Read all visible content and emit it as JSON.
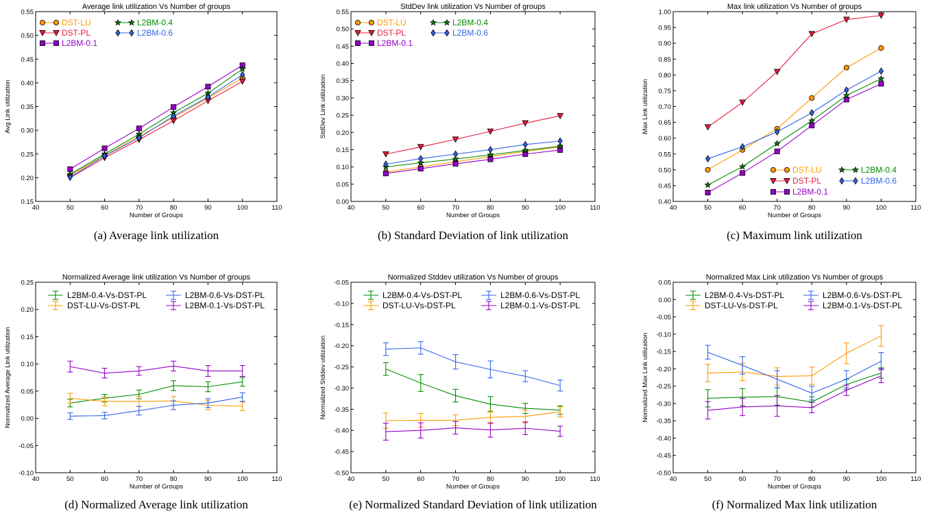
{
  "chart_data": [
    {
      "id": "a",
      "type": "line",
      "title": "Average link utilization Vs Number of groups",
      "xlabel": "Number of Groups",
      "ylabel": "Avg Link utilization",
      "caption": "(a) Average link utilization",
      "xlim": [
        40,
        110
      ],
      "xticks": [
        40,
        50,
        60,
        70,
        80,
        90,
        100,
        110
      ],
      "ylim": [
        0.15,
        0.55
      ],
      "yticks": [
        0.15,
        0.2,
        0.25,
        0.3,
        0.35,
        0.4,
        0.45,
        0.5,
        0.55
      ],
      "ytick_decimals": 2,
      "legend_location": "top-left",
      "legend_columns": [
        0,
        0,
        0,
        1,
        1
      ],
      "x": [
        50,
        60,
        70,
        80,
        90,
        100
      ],
      "series": [
        {
          "name": "DST-LU",
          "color": "#ff9900",
          "marker": "circle",
          "values": [
            0.205,
            0.247,
            0.287,
            0.327,
            0.368,
            0.41
          ]
        },
        {
          "name": "DST-PL",
          "color": "#e8193c",
          "marker": "triangle-down",
          "values": [
            0.2,
            0.242,
            0.28,
            0.32,
            0.362,
            0.403
          ]
        },
        {
          "name": "L2BM-0.1",
          "color": "#9400c8",
          "marker": "square",
          "values": [
            0.218,
            0.262,
            0.304,
            0.349,
            0.392,
            0.437
          ]
        },
        {
          "name": "L2BM-0.4",
          "color": "#008c00",
          "marker": "star",
          "values": [
            0.207,
            0.25,
            0.292,
            0.337,
            0.378,
            0.429
          ]
        },
        {
          "name": "L2BM-0.6",
          "color": "#3264e6",
          "marker": "diamond",
          "values": [
            0.201,
            0.246,
            0.284,
            0.33,
            0.37,
            0.417
          ]
        }
      ]
    },
    {
      "id": "b",
      "type": "line",
      "title": "StdDev link utilization Vs Number of groups",
      "xlabel": "Number of Groups",
      "ylabel": "StdDev Link utilization",
      "caption": "(b) Standard Deviation of link utilization",
      "xlim": [
        40,
        110
      ],
      "xticks": [
        40,
        50,
        60,
        70,
        80,
        90,
        100,
        110
      ],
      "ylim": [
        0.0,
        0.55
      ],
      "yticks": [
        0.0,
        0.05,
        0.1,
        0.15,
        0.2,
        0.25,
        0.3,
        0.35,
        0.4,
        0.45,
        0.5,
        0.55
      ],
      "ytick_decimals": 2,
      "legend_location": "top-left",
      "legend_columns": [
        0,
        0,
        0,
        1,
        1
      ],
      "x": [
        50,
        60,
        70,
        80,
        90,
        100
      ],
      "series": [
        {
          "name": "DST-LU",
          "color": "#ff9900",
          "marker": "circle",
          "values": [
            0.085,
            0.1,
            0.115,
            0.13,
            0.145,
            0.158
          ]
        },
        {
          "name": "DST-PL",
          "color": "#e8193c",
          "marker": "triangle-down",
          "values": [
            0.137,
            0.158,
            0.18,
            0.203,
            0.227,
            0.248
          ]
        },
        {
          "name": "L2BM-0.1",
          "color": "#9400c8",
          "marker": "square",
          "values": [
            0.081,
            0.095,
            0.109,
            0.122,
            0.137,
            0.149
          ]
        },
        {
          "name": "L2BM-0.4",
          "color": "#008c00",
          "marker": "star",
          "values": [
            0.1,
            0.112,
            0.123,
            0.135,
            0.148,
            0.16
          ]
        },
        {
          "name": "L2BM-0.6",
          "color": "#3264e6",
          "marker": "diamond",
          "values": [
            0.108,
            0.124,
            0.137,
            0.15,
            0.165,
            0.175
          ]
        }
      ]
    },
    {
      "id": "c",
      "type": "line",
      "title": "Max link utilization Vs Number of groups",
      "xlabel": "Number of Groups",
      "ylabel": "Max Link utilization",
      "caption": "(c) Maximum link utilization",
      "xlim": [
        40,
        110
      ],
      "xticks": [
        40,
        50,
        60,
        70,
        80,
        90,
        100,
        110
      ],
      "ylim": [
        0.4,
        1.0
      ],
      "yticks": [
        0.4,
        0.45,
        0.5,
        0.55,
        0.6,
        0.65,
        0.7,
        0.75,
        0.8,
        0.85,
        0.9,
        0.95,
        1.0
      ],
      "ytick_decimals": 2,
      "legend_location": "lower-right",
      "legend_columns": [
        0,
        0,
        0,
        1,
        1
      ],
      "x": [
        50,
        60,
        70,
        80,
        90,
        100
      ],
      "series": [
        {
          "name": "DST-LU",
          "color": "#ff9900",
          "marker": "circle",
          "values": [
            0.5,
            0.563,
            0.63,
            0.727,
            0.823,
            0.885
          ]
        },
        {
          "name": "DST-PL",
          "color": "#e8193c",
          "marker": "triangle-down",
          "values": [
            0.635,
            0.713,
            0.81,
            0.93,
            0.975,
            0.988
          ]
        },
        {
          "name": "L2BM-0.1",
          "color": "#9400c8",
          "marker": "square",
          "values": [
            0.428,
            0.49,
            0.558,
            0.64,
            0.722,
            0.772
          ]
        },
        {
          "name": "L2BM-0.4",
          "color": "#008c00",
          "marker": "star",
          "values": [
            0.452,
            0.51,
            0.583,
            0.655,
            0.735,
            0.788
          ]
        },
        {
          "name": "L2BM-0.6",
          "color": "#3264e6",
          "marker": "diamond",
          "values": [
            0.535,
            0.573,
            0.62,
            0.68,
            0.752,
            0.812
          ]
        }
      ]
    },
    {
      "id": "d",
      "type": "line",
      "title": "Normalized Average link utilization Vs Number of groups",
      "xlabel": "Number of Groups",
      "ylabel": "Normalized Average Link utilization",
      "caption": "(d) Normalized Average link utilization",
      "xlim": [
        40,
        110
      ],
      "xticks": [
        40,
        50,
        60,
        70,
        80,
        90,
        100,
        110
      ],
      "ylim": [
        -0.1,
        0.25
      ],
      "yticks": [
        -0.1,
        -0.05,
        0.0,
        0.05,
        0.1,
        0.15,
        0.2,
        0.25
      ],
      "ytick_decimals": 2,
      "legend_location": "top",
      "legend_columns": [
        0,
        0,
        1,
        1
      ],
      "errorbars": true,
      "x": [
        50,
        60,
        70,
        80,
        90,
        100
      ],
      "series": [
        {
          "name": "L2BM-0.4-Vs-DST-PL",
          "color": "#008c00",
          "values": [
            0.028,
            0.037,
            0.044,
            0.06,
            0.058,
            0.067
          ],
          "errors": [
            0.007,
            0.007,
            0.008,
            0.009,
            0.009,
            0.008
          ]
        },
        {
          "name": "DST-LU-Vs-DST-PL",
          "color": "#ff9900",
          "values": [
            0.037,
            0.031,
            0.031,
            0.032,
            0.024,
            0.022
          ],
          "errors": [
            0.009,
            0.008,
            0.009,
            0.008,
            0.008,
            0.008
          ]
        },
        {
          "name": "L2BM-0.6-Vs-DST-PL",
          "color": "#3264e6",
          "values": [
            0.004,
            0.005,
            0.014,
            0.024,
            0.028,
            0.039
          ],
          "errors": [
            0.006,
            0.006,
            0.008,
            0.008,
            0.008,
            0.008
          ]
        },
        {
          "name": "L2BM-0.1-Vs-DST-PL",
          "color": "#9400c8",
          "values": [
            0.095,
            0.083,
            0.087,
            0.096,
            0.087,
            0.087
          ],
          "errors": [
            0.01,
            0.009,
            0.008,
            0.009,
            0.01,
            0.01
          ]
        }
      ]
    },
    {
      "id": "e",
      "type": "line",
      "title": "Normalized Stddev utilization Vs Number of groups",
      "xlabel": "Number of Groups",
      "ylabel": "Normalized Stddev utilization",
      "caption": "(e) Normalized Standard Deviation of link utilization",
      "xlim": [
        40,
        110
      ],
      "xticks": [
        40,
        50,
        60,
        70,
        80,
        90,
        100,
        110
      ],
      "ylim": [
        -0.5,
        -0.05
      ],
      "yticks": [
        -0.5,
        -0.45,
        -0.4,
        -0.35,
        -0.3,
        -0.25,
        -0.2,
        -0.15,
        -0.1,
        -0.05
      ],
      "ytick_decimals": 2,
      "legend_location": "top",
      "legend_columns": [
        0,
        0,
        1,
        1
      ],
      "errorbars": true,
      "x": [
        50,
        60,
        70,
        80,
        90,
        100
      ],
      "series": [
        {
          "name": "L2BM-0.4-Vs-DST-PL",
          "color": "#008c00",
          "values": [
            -0.255,
            -0.288,
            -0.318,
            -0.338,
            -0.348,
            -0.352
          ],
          "errors": [
            0.015,
            0.02,
            0.015,
            0.018,
            0.012,
            0.01
          ]
        },
        {
          "name": "DST-LU-Vs-DST-PL",
          "color": "#ff9900",
          "values": [
            -0.377,
            -0.376,
            -0.376,
            -0.369,
            -0.367,
            -0.356
          ],
          "errors": [
            0.018,
            0.016,
            0.013,
            0.015,
            0.015,
            0.012
          ]
        },
        {
          "name": "L2BM-0.6-Vs-DST-PL",
          "color": "#3264e6",
          "values": [
            -0.208,
            -0.205,
            -0.238,
            -0.256,
            -0.272,
            -0.294
          ],
          "errors": [
            0.015,
            0.015,
            0.017,
            0.02,
            0.013,
            0.013
          ]
        },
        {
          "name": "L2BM-0.1-Vs-DST-PL",
          "color": "#9400c8",
          "values": [
            -0.403,
            -0.4,
            -0.394,
            -0.399,
            -0.395,
            -0.402
          ],
          "errors": [
            0.02,
            0.018,
            0.015,
            0.017,
            0.015,
            0.012
          ]
        }
      ]
    },
    {
      "id": "f",
      "type": "line",
      "title": "Normalized Max Link utilization Vs Number of groups",
      "xlabel": "Number of Groups",
      "ylabel": "Normalized Max Link utilization",
      "caption": "(f) Normalized Max link utilization",
      "xlim": [
        40,
        110
      ],
      "xticks": [
        40,
        50,
        60,
        70,
        80,
        90,
        100,
        110
      ],
      "ylim": [
        -0.5,
        0.05
      ],
      "yticks": [
        -0.5,
        -0.45,
        -0.4,
        -0.35,
        -0.3,
        -0.25,
        -0.2,
        -0.15,
        -0.1,
        -0.05,
        0.0,
        0.05
      ],
      "ytick_decimals": 2,
      "legend_location": "top",
      "legend_columns": [
        0,
        0,
        1,
        1
      ],
      "errorbars": true,
      "x": [
        50,
        60,
        70,
        80,
        90,
        100
      ],
      "series": [
        {
          "name": "L2BM-0.4-Vs-DST-PL",
          "color": "#008c00",
          "values": [
            -0.285,
            -0.282,
            -0.28,
            -0.296,
            -0.245,
            -0.212
          ],
          "errors": [
            0.025,
            0.025,
            0.025,
            0.015,
            0.015,
            0.015
          ]
        },
        {
          "name": "DST-LU-Vs-DST-PL",
          "color": "#ff9900",
          "values": [
            -0.212,
            -0.209,
            -0.222,
            -0.22,
            -0.155,
            -0.105
          ],
          "errors": [
            0.025,
            0.025,
            0.025,
            0.025,
            0.03,
            0.03
          ]
        },
        {
          "name": "L2BM-0.6-Vs-DST-PL",
          "color": "#3264e6",
          "values": [
            -0.152,
            -0.19,
            -0.23,
            -0.27,
            -0.23,
            -0.178
          ],
          "errors": [
            0.02,
            0.025,
            0.025,
            0.02,
            0.025,
            0.025
          ]
        },
        {
          "name": "L2BM-0.1-Vs-DST-PL",
          "color": "#9400c8",
          "values": [
            -0.32,
            -0.31,
            -0.307,
            -0.312,
            -0.262,
            -0.22
          ],
          "errors": [
            0.025,
            0.025,
            0.03,
            0.015,
            0.015,
            0.02
          ]
        }
      ]
    }
  ]
}
